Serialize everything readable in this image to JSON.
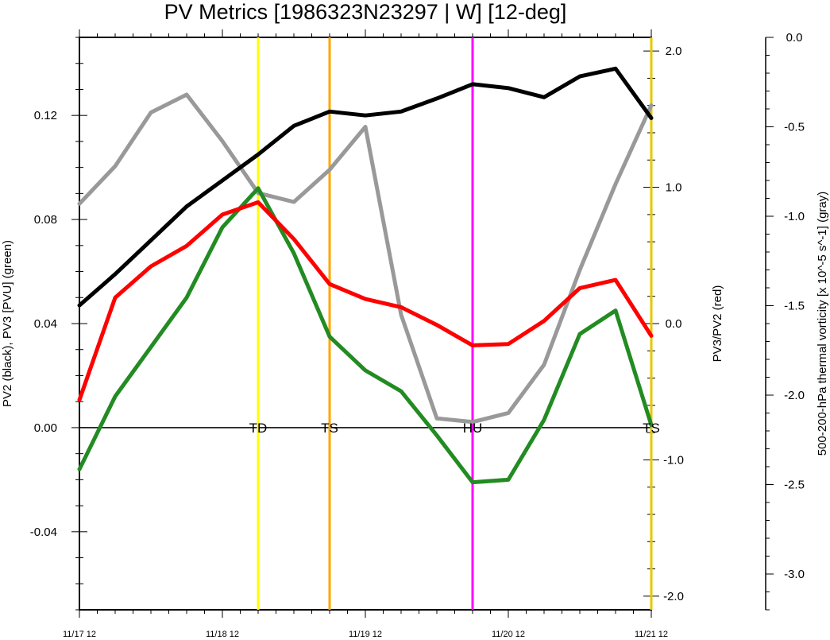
{
  "chart_data": {
    "type": "line",
    "title": "PV Metrics [1986323N23297 | W] [12-deg]",
    "x_ticks": [
      "11/17 12",
      "11/18 12",
      "11/19 12",
      "11/20 12",
      "11/21 12"
    ],
    "x": [
      0,
      0.25,
      0.5,
      0.75,
      1.0,
      1.25,
      1.5,
      1.75,
      2.0,
      2.25,
      2.5,
      2.75,
      3.0,
      3.25,
      3.5,
      3.75,
      4.0
    ],
    "xlim": [
      0,
      4
    ],
    "left_axis": {
      "ylabel": "PV2 (black), PV3 [PVU] (green)",
      "ylim": [
        -0.07,
        0.15
      ],
      "ticks": [
        "-0.04",
        "0.00",
        "0.04",
        "0.08",
        "0.12"
      ],
      "tick_values": [
        -0.04,
        0.0,
        0.04,
        0.08,
        0.12
      ]
    },
    "right_axis": {
      "ylabel": "PV3/PV2 (red)",
      "ylim": [
        -2.1,
        2.1
      ],
      "ticks": [
        "-2.0",
        "-1.0",
        "0.0",
        "1.0",
        "2.0"
      ],
      "tick_values": [
        -2.0,
        -1.0,
        0.0,
        1.0,
        2.0
      ]
    },
    "far_axis": {
      "ylabel": "500-200-hPa thermal vorticity [x 10^-5 s^-1] (gray)",
      "ylim": [
        -3.2,
        0.0
      ],
      "ticks": [
        "0.0",
        "-0.5",
        "-1.0",
        "-1.5",
        "-2.0",
        "-2.5",
        "-3.0"
      ],
      "tick_values": [
        0.0,
        -0.5,
        -1.0,
        -1.5,
        -2.0,
        -2.5,
        -3.0
      ]
    },
    "series": [
      {
        "color": "#000000",
        "axis": "left",
        "values": [
          0.047,
          0.059,
          0.072,
          0.085,
          0.095,
          0.105,
          0.116,
          0.1215,
          0.12,
          0.1215,
          0.1265,
          0.132,
          0.1305,
          0.127,
          0.135,
          0.138,
          0.119
        ]
      },
      {
        "color": "#228b22",
        "axis": "left",
        "values": [
          -0.016,
          0.012,
          0.031,
          0.05,
          0.077,
          0.092,
          0.067,
          0.035,
          0.022,
          0.014,
          -0.003,
          -0.021,
          -0.02,
          0.003,
          0.036,
          0.045,
          0.001
        ]
      },
      {
        "color": "#ff0000",
        "axis": "right",
        "values": [
          -0.56,
          0.19,
          0.42,
          0.57,
          0.8,
          0.89,
          0.62,
          0.29,
          0.18,
          0.12,
          -0.01,
          -0.16,
          -0.15,
          0.02,
          0.26,
          0.32,
          -0.09
        ]
      },
      {
        "color": "#999999",
        "axis": "far",
        "values": [
          -0.93,
          -0.72,
          -0.42,
          -0.32,
          -0.58,
          -0.87,
          -0.92,
          -0.74,
          -0.5,
          -1.55,
          -2.13,
          -2.15,
          -2.1,
          -1.83,
          -1.3,
          -0.82,
          -0.38
        ]
      }
    ],
    "vertical_lines": [
      {
        "x": 1.25,
        "color": "#ffff00",
        "label": "TD"
      },
      {
        "x": 1.75,
        "color": "#ffa500",
        "label": "TS"
      },
      {
        "x": 2.75,
        "color": "#ff00ff",
        "label": "HU"
      },
      {
        "x": 4.0,
        "color": "#e6c700",
        "label": "TS"
      }
    ],
    "zero_line": true,
    "grid": false
  }
}
